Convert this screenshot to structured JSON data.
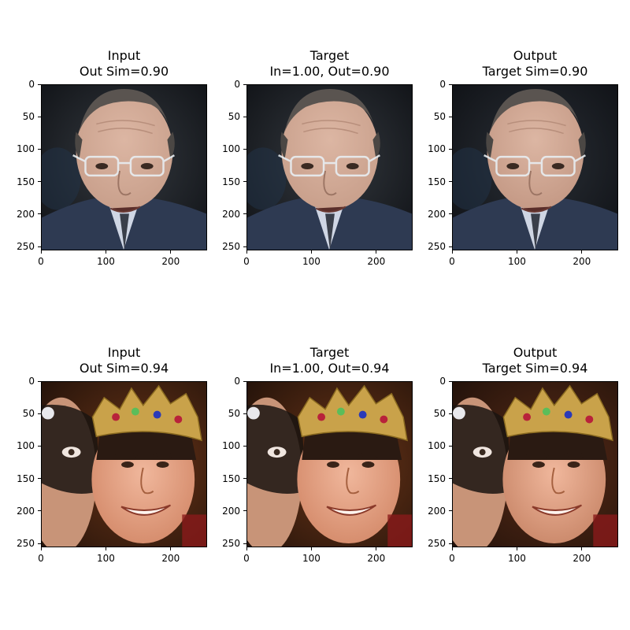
{
  "figure": {
    "rows": [
      {
        "panels": [
          {
            "title_line1": "Input",
            "title_line2": "Out Sim=0.90",
            "image": "bald-man-glasses-suit"
          },
          {
            "title_line1": "Target",
            "title_line2": "In=1.00, Out=0.90",
            "image": "bald-man-glasses-suit"
          },
          {
            "title_line1": "Output",
            "title_line2": "Target Sim=0.90",
            "image": "bald-man-glasses-suit-edited"
          }
        ]
      },
      {
        "panels": [
          {
            "title_line1": "Input",
            "title_line2": "Out Sim=0.94",
            "image": "man-with-crown-and-masked-person"
          },
          {
            "title_line1": "Target",
            "title_line2": "In=1.00, Out=0.94",
            "image": "man-with-crown-and-masked-person"
          },
          {
            "title_line1": "Output",
            "title_line2": "Target Sim=0.94",
            "image": "man-with-crown-and-masked-person-edited"
          }
        ]
      }
    ]
  },
  "chart_data": {
    "type": "image-grid",
    "x_ticks": [
      "0",
      "100",
      "200"
    ],
    "y_ticks": [
      "0",
      "50",
      "100",
      "150",
      "200",
      "250"
    ],
    "xlim": [
      0,
      256
    ],
    "ylim": [
      256,
      0
    ],
    "grid": false
  }
}
